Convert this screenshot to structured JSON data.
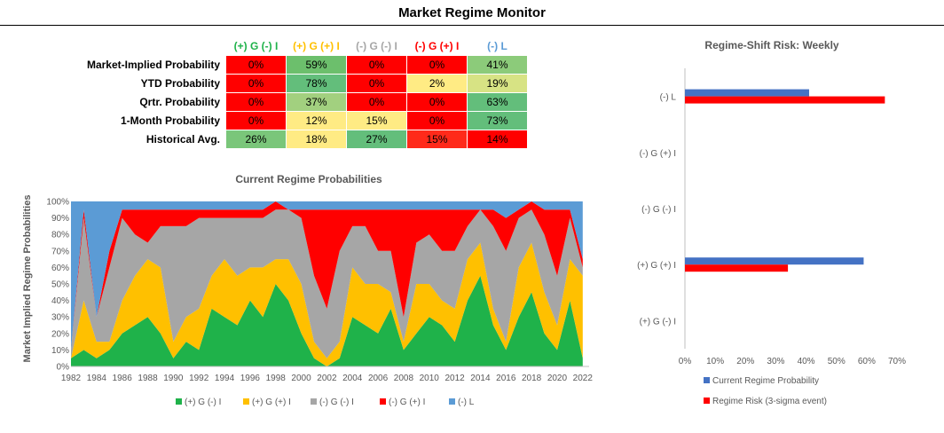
{
  "title": "Market Regime Monitor",
  "colors": {
    "pos_g_neg_i": "#1fb24a",
    "pos_g_pos_i": "#ffc000",
    "neg_g_neg_i": "#a6a6a6",
    "neg_g_pos_i": "#ff0000",
    "neg_l": "#5b9bd5",
    "current_bar": "#4472c4",
    "risk_bar": "#ff0000"
  },
  "matrix": {
    "columns": [
      {
        "label": "(+) G (-) I",
        "color": "#1fb24a"
      },
      {
        "label": "(+) G (+) I",
        "color": "#ffc000"
      },
      {
        "label": "(-) G (-) I",
        "color": "#a6a6a6"
      },
      {
        "label": "(-) G (+) I",
        "color": "#ff0000"
      },
      {
        "label": "(-) L",
        "color": "#5b9bd5"
      }
    ],
    "rows": [
      {
        "label": "Market-Implied Probability",
        "values": [
          "0%",
          "59%",
          "0%",
          "0%",
          "41%"
        ],
        "fills": [
          "#ff0000",
          "#6cbf6c",
          "#ff0000",
          "#ff0000",
          "#8ccb7a"
        ]
      },
      {
        "label": "YTD Probability",
        "values": [
          "0%",
          "78%",
          "0%",
          "2%",
          "19%"
        ],
        "fills": [
          "#ff0000",
          "#63be7b",
          "#ff0000",
          "#ffeb84",
          "#d7e384"
        ]
      },
      {
        "label": "Qrtr. Probability",
        "values": [
          "0%",
          "37%",
          "0%",
          "0%",
          "63%"
        ],
        "fills": [
          "#ff0000",
          "#a2d07f",
          "#ff0000",
          "#ff0000",
          "#63be7b"
        ]
      },
      {
        "label": "1-Month Probability",
        "values": [
          "0%",
          "12%",
          "15%",
          "0%",
          "73%"
        ],
        "fills": [
          "#ff0000",
          "#ffeb84",
          "#ffeb84",
          "#ff0000",
          "#63be7b"
        ]
      },
      {
        "label": "Historical Avg.",
        "values": [
          "26%",
          "18%",
          "27%",
          "15%",
          "14%"
        ],
        "fills": [
          "#7ac67a",
          "#ffeb84",
          "#63be7b",
          "#ff2a1a",
          "#ff0000"
        ]
      }
    ]
  },
  "chart_data": [
    {
      "type": "area",
      "stacked": true,
      "title": "Current Regime Probabilities",
      "xlabel": "",
      "ylabel": "Market Implied Regime Probabilities",
      "xlim": [
        1982,
        2022.5
      ],
      "ylim": [
        0,
        100
      ],
      "x_ticks": [
        "1982",
        "1984",
        "1986",
        "1988",
        "1990",
        "1992",
        "1994",
        "1996",
        "1998",
        "2000",
        "2002",
        "2004",
        "2006",
        "2008",
        "2010",
        "2012",
        "2014",
        "2016",
        "2018",
        "2020",
        "2022"
      ],
      "y_ticks": [
        "0%",
        "10%",
        "20%",
        "30%",
        "40%",
        "50%",
        "60%",
        "70%",
        "80%",
        "90%",
        "100%"
      ],
      "legend_position": "bottom",
      "x": [
        1982,
        1983,
        1984,
        1985,
        1986,
        1987,
        1988,
        1989,
        1990,
        1991,
        1992,
        1993,
        1994,
        1995,
        1996,
        1997,
        1998,
        1999,
        2000,
        2001,
        2002,
        2003,
        2004,
        2005,
        2006,
        2007,
        2008,
        2009,
        2010,
        2011,
        2012,
        2013,
        2014,
        2015,
        2016,
        2017,
        2018,
        2019,
        2020,
        2021,
        2022
      ],
      "series": [
        {
          "name": "(+) G (-) I",
          "values": [
            5,
            10,
            5,
            10,
            20,
            25,
            30,
            20,
            5,
            15,
            10,
            35,
            30,
            25,
            40,
            30,
            50,
            40,
            20,
            5,
            0,
            5,
            30,
            25,
            20,
            35,
            10,
            20,
            30,
            25,
            15,
            40,
            55,
            25,
            10,
            30,
            45,
            20,
            10,
            40,
            5
          ]
        },
        {
          "name": "(+) G (+) I",
          "values": [
            0,
            30,
            10,
            5,
            20,
            30,
            35,
            40,
            10,
            15,
            25,
            20,
            35,
            30,
            20,
            30,
            15,
            25,
            30,
            10,
            5,
            10,
            30,
            25,
            30,
            10,
            5,
            30,
            20,
            15,
            20,
            25,
            20,
            10,
            5,
            30,
            30,
            25,
            15,
            25,
            50
          ]
        },
        {
          "name": "(-) G (-) I",
          "values": [
            5,
            50,
            15,
            45,
            50,
            25,
            10,
            25,
            70,
            55,
            55,
            35,
            25,
            35,
            30,
            30,
            30,
            30,
            40,
            40,
            30,
            55,
            25,
            35,
            20,
            25,
            15,
            25,
            30,
            30,
            35,
            20,
            20,
            50,
            55,
            30,
            20,
            35,
            30,
            25,
            5
          ]
        },
        {
          "name": "(-) G (+) I",
          "values": [
            0,
            5,
            0,
            10,
            5,
            15,
            20,
            10,
            10,
            10,
            5,
            5,
            5,
            5,
            5,
            5,
            5,
            0,
            5,
            40,
            60,
            25,
            10,
            10,
            25,
            25,
            65,
            20,
            15,
            25,
            25,
            10,
            0,
            10,
            20,
            5,
            5,
            15,
            40,
            5,
            5
          ]
        },
        {
          "name": "(-) L",
          "values": [
            90,
            5,
            70,
            30,
            5,
            5,
            5,
            5,
            5,
            5,
            5,
            5,
            5,
            5,
            5,
            5,
            0,
            5,
            5,
            5,
            5,
            5,
            5,
            5,
            5,
            5,
            5,
            5,
            5,
            5,
            5,
            5,
            5,
            5,
            10,
            5,
            0,
            5,
            5,
            5,
            35
          ]
        }
      ]
    },
    {
      "type": "bar",
      "orientation": "horizontal",
      "title": "Regime-Shift Risk: Weekly",
      "categories": [
        "(-) L",
        "(-) G (+) I",
        "(-) G (-) I",
        "(+) G (+) I",
        "(+) G (-) I"
      ],
      "xlim": [
        0,
        70
      ],
      "x_ticks": [
        "0%",
        "10%",
        "20%",
        "30%",
        "40%",
        "50%",
        "60%",
        "70%"
      ],
      "legend_position": "bottom",
      "series": [
        {
          "name": "Current Regime Probability",
          "values": [
            41,
            0,
            0,
            59,
            0
          ]
        },
        {
          "name": "Regime Risk (3-sigma event)",
          "values": [
            66,
            0,
            0,
            34,
            0
          ]
        }
      ]
    }
  ]
}
